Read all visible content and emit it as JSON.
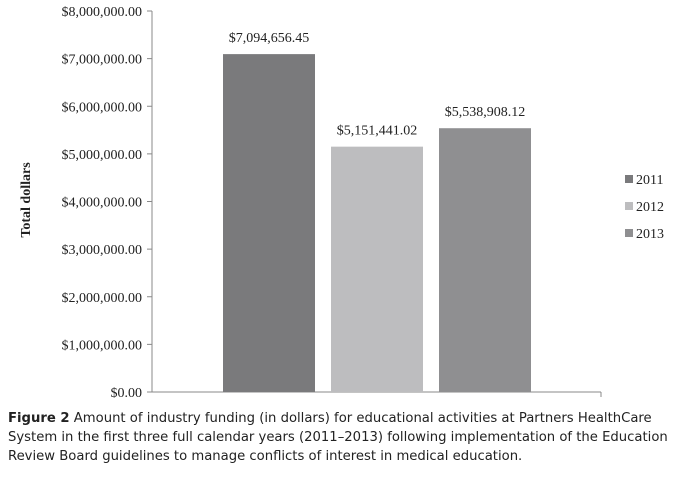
{
  "chart_data": {
    "type": "bar",
    "title": "",
    "ylabel": "Total dollars",
    "xlabel": "",
    "categories": [
      "2011",
      "2012",
      "2013"
    ],
    "values": [
      7094656.45,
      5151441.02,
      5538908.12
    ],
    "data_labels": [
      "$7,094,656.45",
      "$5,151,441.02",
      "$5,538,908.12"
    ],
    "colors": [
      "#7a7a7c",
      "#bdbdbf",
      "#8f8f91"
    ],
    "ylim": [
      0,
      8000000
    ],
    "yticks": [
      0,
      1000000,
      2000000,
      3000000,
      4000000,
      5000000,
      6000000,
      7000000,
      8000000
    ],
    "ytick_labels": [
      "$0.00",
      "$1,000,000.00",
      "$2,000,000.00",
      "$3,000,000.00",
      "$4,000,000.00",
      "$5,000,000.00",
      "$6,000,000.00",
      "$7,000,000.00",
      "$8,000,000.00"
    ],
    "legend": [
      "2011",
      "2012",
      "2013"
    ],
    "legend_position": "right",
    "grid": false
  },
  "caption": {
    "label": "Figure 2",
    "text": " Amount of industry funding (in dollars) for educational activities at Partners HealthCare System in the first three full calendar years (2011–2013) following implementation of the Education Review Board guidelines to manage conflicts of interest in medical education."
  }
}
